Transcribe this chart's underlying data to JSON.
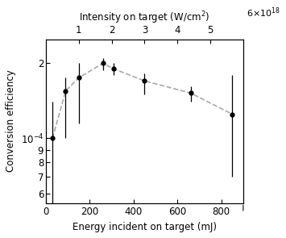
{
  "x_data": [
    30,
    90,
    150,
    260,
    310,
    450,
    660,
    850
  ],
  "y_data": [
    0.0001,
    0.000155,
    0.000175,
    0.0002,
    0.00019,
    0.00017,
    0.000152,
    0.000125
  ],
  "y_err_low": [
    5.5e-05,
    5.5e-05,
    6e-05,
    1.2e-05,
    1e-05,
    2e-05,
    1.2e-05,
    5.5e-05
  ],
  "y_err_high": [
    4e-05,
    2e-05,
    2.5e-05,
    1e-05,
    1e-05,
    1.2e-05,
    1e-05,
    5.5e-05
  ],
  "xlabel": "Energy incident on target (mJ)",
  "ylabel": "Conversion efficiency",
  "top_xlabel": "Intensity on target (W/cm$^2$)",
  "xlim": [
    0,
    900
  ],
  "ylim_log": [
    5.5e-05,
    0.00025
  ],
  "x_ticks": [
    0,
    200,
    400,
    600,
    800
  ],
  "yticks": [
    6e-05,
    7e-05,
    8e-05,
    9e-05,
    0.0001,
    0.0002
  ],
  "dashed_line_color": "#aaaaaa",
  "marker_color": "black",
  "fontsize": 8.5
}
